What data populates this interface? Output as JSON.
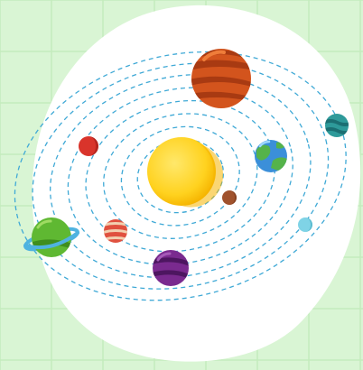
{
  "scene": {
    "background_color": "#d9f5d4",
    "grid_line_color": "#c4ebbd",
    "backdrop_color": "#ffffff",
    "orbit_color": "#3fa9d6"
  },
  "sun": {
    "name": "sun-icon",
    "colors": {
      "core": "#ffd21f",
      "rim": "#f5b400",
      "highlight": "#ffe86b"
    }
  },
  "planets": [
    {
      "name": "large-orange-striped-planet-icon",
      "colors": {
        "base": "#d3541d",
        "stripe": "#a83a12",
        "highlight": "#ef7d3a"
      }
    },
    {
      "name": "teal-planet-icon",
      "colors": {
        "base": "#2e9a9a",
        "stripe": "#1b6f73",
        "highlight": "#6fd0cc"
      }
    },
    {
      "name": "earth-planet-icon",
      "colors": {
        "base": "#3b8fd9",
        "stripe": "#55b34a",
        "highlight": "#9fd8ff"
      }
    },
    {
      "name": "small-brown-planet-icon",
      "colors": {
        "base": "#a0522d",
        "stripe": "#7a3a1c",
        "highlight": "#c77a4e"
      }
    },
    {
      "name": "small-light-blue-planet-icon",
      "colors": {
        "base": "#7fd3e6",
        "stripe": "#4bb2c8",
        "highlight": "#c8f1fa"
      }
    },
    {
      "name": "small-red-planet-icon",
      "colors": {
        "base": "#d9342b",
        "stripe": "#a71f19",
        "highlight": "#f06a5e"
      }
    },
    {
      "name": "striped-red-planet-icon",
      "colors": {
        "base": "#e0513f",
        "stripe": "#f2d0b0",
        "highlight": "#f08a73"
      }
    },
    {
      "name": "purple-planet-icon",
      "colors": {
        "base": "#7a2a8f",
        "stripe": "#4d1660",
        "highlight": "#a55ab8"
      }
    },
    {
      "name": "ringed-green-planet-icon",
      "colors": {
        "base": "#5fb832",
        "stripe": "#3f8e1e",
        "highlight": "#9edb62",
        "ring": "#4fb3e0"
      }
    }
  ]
}
